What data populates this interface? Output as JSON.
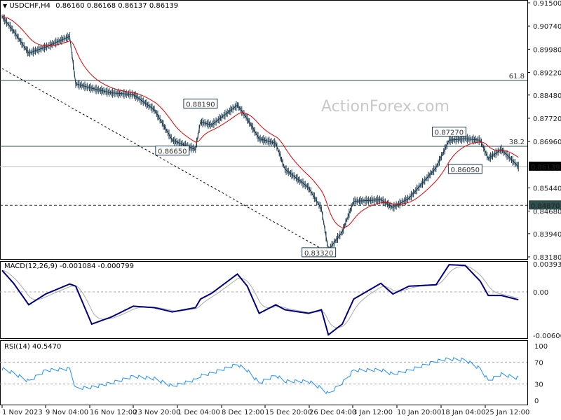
{
  "header": {
    "symbol": "USDCHF,H4",
    "ohlc": "0.86160 0.86168 0.86137 0.86139"
  },
  "watermark": "ActionForex.com",
  "colors": {
    "price": "#1c3b4f",
    "ma": "#e00000",
    "macd": "#000080",
    "signal": "#aaaaaa",
    "rsi": "#1e90ff",
    "current_price_bg": "#000000",
    "support_bg": "#2f4f4f"
  },
  "chart_data": [
    {
      "type": "line",
      "panel": "price",
      "title": "USDCHF,H4",
      "y_ticks": [
        "0.91500",
        "0.90740",
        "0.89980",
        "0.89220",
        "0.88480",
        "0.87720",
        "0.86960",
        "0.85440",
        "0.84680",
        "0.83940",
        "0.83180"
      ],
      "ylim": [
        0.8318,
        0.915
      ],
      "dates": [
        "2023-11-01 00:00",
        "2023-11-03 04:00",
        "2023-11-06 00:00",
        "2023-11-09 04:00",
        "2023-11-13 04:00",
        "2023-11-14 04:00",
        "2023-11-16 20:00",
        "2023-11-20 04:00",
        "2023-11-23 20:00",
        "2023-11-27 08:00",
        "2023-11-30 08:00",
        "2023-12-04 04:00",
        "2023-12-05 00:00",
        "2023-12-06 20:00",
        "2023-12-11 04:00",
        "2023-12-12 20:00",
        "2023-12-14 20:00",
        "2023-12-18 08:00",
        "2023-12-20 12:00",
        "2023-12-26 00:00",
        "2023-12-28 12:00",
        "2023-12-29 20:00",
        "2024-01-01 12:00",
        "2024-01-03 16:00",
        "2024-01-08 04:00",
        "2024-01-10 04:00",
        "2024-01-12 20:00",
        "2024-01-17 08:00",
        "2024-01-19 12:00",
        "2024-01-22 04:00",
        "2024-01-24 16:00",
        "2024-01-26 00:00",
        "2024-01-28 04:00",
        "2024-01-31 00:00"
      ],
      "close": [
        0.9105,
        0.9057,
        0.8985,
        0.9005,
        0.904,
        0.8885,
        0.887,
        0.8855,
        0.885,
        0.88,
        0.87,
        0.867,
        0.876,
        0.875,
        0.8815,
        0.877,
        0.8705,
        0.869,
        0.8605,
        0.8545,
        0.8475,
        0.834,
        0.84,
        0.85,
        0.8505,
        0.848,
        0.851,
        0.861,
        0.87,
        0.8705,
        0.87,
        0.864,
        0.867,
        0.8614
      ],
      "levels": [
        {
          "label": "61.8",
          "value": 0.8896,
          "style": "solid"
        },
        {
          "label": "38.2",
          "value": 0.868,
          "style": "solid"
        },
        {
          "label": "",
          "value": 0.86139,
          "style": "current"
        },
        {
          "label": "0.84870",
          "value": 0.8487,
          "style": "dashed"
        }
      ],
      "current_price": "0.86139",
      "annotations": [
        {
          "text": "0.88190",
          "value": 0.8819,
          "date": "2023-12-05 00:00"
        },
        {
          "text": "0.86650",
          "value": 0.8665,
          "date": "2023-11-30 08:00"
        },
        {
          "text": "0.87270",
          "value": 0.8727,
          "date": "2024-01-19 12:00"
        },
        {
          "text": "0.86050",
          "value": 0.8605,
          "date": "2024-01-22 04:00"
        },
        {
          "text": "0.83320",
          "value": 0.8332,
          "date": "2023-12-28 00:00"
        }
      ],
      "trendline": {
        "from": {
          "date": "2023-11-01 00:00",
          "value": 0.8935
        },
        "to": {
          "date": "2023-12-29 20:00",
          "value": 0.8332
        },
        "style": "dashed"
      }
    },
    {
      "type": "line",
      "panel": "macd",
      "title": "MACD(12,26,9) -0.001084 -0.000799",
      "y_ticks": [
        "0.003933",
        "0.00",
        "-0.006068"
      ],
      "ylim": [
        -0.0063,
        0.0045
      ],
      "macd": [
        0.003,
        0.0012,
        -0.0018,
        -0.0003,
        0.0011,
        0.0008,
        -0.0045,
        -0.0035,
        -0.002,
        -0.0022,
        -0.0028,
        -0.0022,
        -0.001,
        -0.0002,
        0.0025,
        0.0008,
        -0.003,
        -0.0018,
        -0.0025,
        -0.003,
        -0.0025,
        -0.006,
        -0.0045,
        -0.001,
        0.0012,
        -0.0003,
        0.0008,
        0.001,
        0.0038,
        0.0037,
        0.0015,
        -0.0005,
        -0.0005,
        -0.0011
      ]
    },
    {
      "type": "line",
      "panel": "rsi",
      "title": "RSI(14) 40.5470",
      "y_ticks": [
        "100",
        "70",
        "30",
        "0"
      ],
      "ylim": [
        0,
        100
      ],
      "rsi": [
        58,
        50,
        35,
        55,
        58,
        22,
        24,
        32,
        44,
        40,
        26,
        38,
        45,
        50,
        66,
        55,
        32,
        46,
        35,
        35,
        22,
        12,
        32,
        55,
        56,
        48,
        55,
        72,
        76,
        74,
        58,
        36,
        48,
        40.5
      ]
    }
  ],
  "x_axis": {
    "ticks": [
      "1 Nov 2023",
      "9 Nov 04:00",
      "16 Nov 12:00",
      "23 Nov 20:00",
      "1 Dec 04:00",
      "8 Dec 12:00",
      "15 Dec 20:00",
      "26 Dec 04:00",
      "3 Jan 12:00",
      "10 Jan 20:00",
      "18 Jan 04:00",
      "25 Jan 12:00"
    ]
  }
}
